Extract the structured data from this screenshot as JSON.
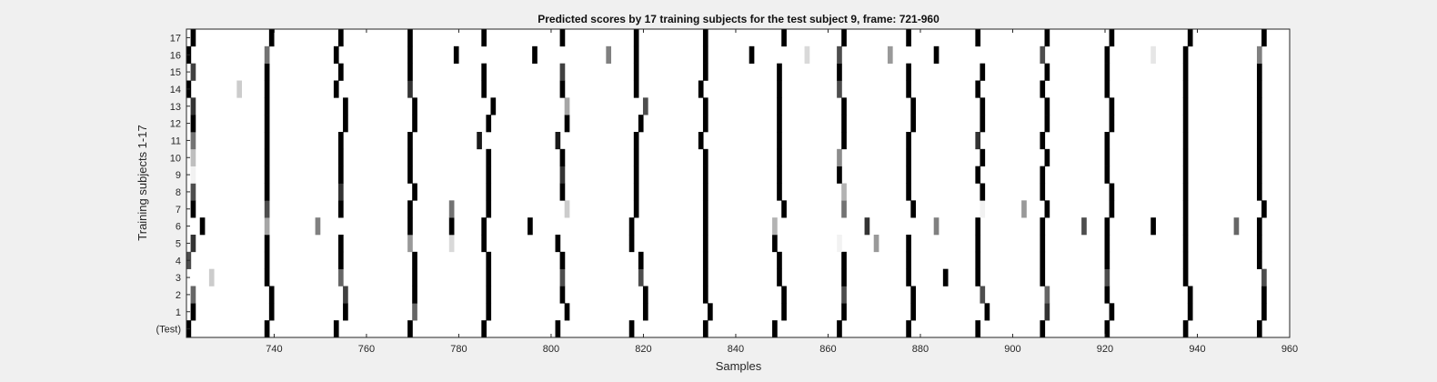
{
  "chart_data": {
    "type": "heatmap",
    "title": "Predicted scores by 17 training subjects for the test subject 9, frame: 721-960",
    "xlabel": "Samples",
    "ylabel": "Training subjects 1-17",
    "xlim": [
      721,
      960
    ],
    "xticks": [
      740,
      760,
      780,
      800,
      820,
      840,
      860,
      880,
      900,
      920,
      940,
      960
    ],
    "ylabels": [
      "(Test)",
      "1",
      "2",
      "3",
      "4",
      "5",
      "6",
      "7",
      "8",
      "9",
      "10",
      "11",
      "12",
      "13",
      "14",
      "15",
      "16",
      "17"
    ],
    "colormap": "grayscale (white = 0, black = 1)",
    "rows": [
      {
        "row": "(Test)",
        "cells": [
          [
            721,
            1
          ],
          [
            738,
            1
          ],
          [
            753,
            1
          ],
          [
            769,
            1
          ],
          [
            785,
            1
          ],
          [
            801,
            1
          ],
          [
            817,
            1
          ],
          [
            833,
            1
          ],
          [
            848,
            1
          ],
          [
            862,
            1
          ],
          [
            877,
            1
          ],
          [
            892,
            1
          ],
          [
            906,
            1
          ],
          [
            920,
            1
          ],
          [
            937,
            1
          ],
          [
            953,
            1
          ]
        ]
      },
      {
        "row": "1",
        "cells": [
          [
            722,
            1
          ],
          [
            739,
            1
          ],
          [
            755,
            1
          ],
          [
            770,
            0.6
          ],
          [
            786,
            1
          ],
          [
            803,
            1
          ],
          [
            820,
            1
          ],
          [
            834,
            1
          ],
          [
            850,
            1
          ],
          [
            863,
            1
          ],
          [
            878,
            1
          ],
          [
            894,
            1
          ],
          [
            907,
            0.8
          ],
          [
            921,
            1
          ],
          [
            938,
            1
          ],
          [
            954,
            1
          ]
        ]
      },
      {
        "row": "2",
        "cells": [
          [
            722,
            0.6
          ],
          [
            739,
            1
          ],
          [
            755,
            0.75
          ],
          [
            770,
            1
          ],
          [
            786,
            1
          ],
          [
            802,
            1
          ],
          [
            820,
            1
          ],
          [
            833,
            1
          ],
          [
            850,
            1
          ],
          [
            863,
            0.7
          ],
          [
            878,
            1
          ],
          [
            893,
            0.7
          ],
          [
            907,
            0.6
          ],
          [
            920,
            1
          ],
          [
            938,
            1
          ],
          [
            954,
            1
          ]
        ]
      },
      {
        "row": "3",
        "cells": [
          [
            726,
            0.2
          ],
          [
            738,
            1
          ],
          [
            754,
            0.6
          ],
          [
            770,
            1
          ],
          [
            786,
            1
          ],
          [
            802,
            0.7
          ],
          [
            819,
            0.7
          ],
          [
            833,
            1
          ],
          [
            849,
            1
          ],
          [
            863,
            1
          ],
          [
            877,
            1
          ],
          [
            885,
            1
          ],
          [
            892,
            1
          ],
          [
            906,
            1
          ],
          [
            920,
            0.7
          ],
          [
            937,
            1
          ],
          [
            954,
            0.7
          ]
        ]
      },
      {
        "row": "4",
        "cells": [
          [
            721,
            0.7
          ],
          [
            738,
            1
          ],
          [
            754,
            1
          ],
          [
            770,
            1
          ],
          [
            786,
            1
          ],
          [
            802,
            1
          ],
          [
            819,
            1
          ],
          [
            833,
            1
          ],
          [
            849,
            1
          ],
          [
            863,
            1
          ],
          [
            877,
            1
          ],
          [
            892,
            1
          ],
          [
            906,
            1
          ],
          [
            920,
            1
          ],
          [
            937,
            1
          ],
          [
            953,
            1
          ]
        ]
      },
      {
        "row": "5",
        "cells": [
          [
            722,
            0.8
          ],
          [
            738,
            1
          ],
          [
            754,
            1
          ],
          [
            769,
            0.4
          ],
          [
            778,
            0.15
          ],
          [
            785,
            1
          ],
          [
            801,
            1
          ],
          [
            817,
            1
          ],
          [
            833,
            1
          ],
          [
            848,
            1
          ],
          [
            862,
            0.05
          ],
          [
            870,
            0.4
          ],
          [
            877,
            1
          ],
          [
            892,
            1
          ],
          [
            906,
            1
          ],
          [
            920,
            1
          ],
          [
            937,
            1
          ],
          [
            953,
            1
          ]
        ]
      },
      {
        "row": "6",
        "cells": [
          [
            724,
            1
          ],
          [
            738,
            0.35
          ],
          [
            749,
            0.5
          ],
          [
            769,
            1
          ],
          [
            778,
            1
          ],
          [
            785,
            1
          ],
          [
            795,
            1
          ],
          [
            817,
            1
          ],
          [
            833,
            1
          ],
          [
            848,
            0.3
          ],
          [
            868,
            0.8
          ],
          [
            883,
            0.5
          ],
          [
            892,
            1
          ],
          [
            906,
            1
          ],
          [
            915,
            0.7
          ],
          [
            920,
            1
          ],
          [
            930,
            1
          ],
          [
            937,
            1
          ],
          [
            948,
            0.6
          ],
          [
            953,
            1
          ]
        ]
      },
      {
        "row": "7",
        "cells": [
          [
            722,
            1
          ],
          [
            738,
            0.7
          ],
          [
            754,
            1
          ],
          [
            769,
            1
          ],
          [
            778,
            0.55
          ],
          [
            786,
            1
          ],
          [
            803,
            0.2
          ],
          [
            818,
            1
          ],
          [
            833,
            1
          ],
          [
            850,
            1
          ],
          [
            863,
            0.55
          ],
          [
            878,
            1
          ],
          [
            893,
            0.05
          ],
          [
            902,
            0.4
          ],
          [
            907,
            1
          ],
          [
            921,
            1
          ],
          [
            937,
            1
          ],
          [
            954,
            1
          ]
        ]
      },
      {
        "row": "8",
        "cells": [
          [
            722,
            0.7
          ],
          [
            738,
            1
          ],
          [
            754,
            0.8
          ],
          [
            770,
            1
          ],
          [
            786,
            1
          ],
          [
            802,
            1
          ],
          [
            818,
            1
          ],
          [
            833,
            1
          ],
          [
            849,
            1
          ],
          [
            863,
            0.3
          ],
          [
            877,
            1
          ],
          [
            893,
            1
          ],
          [
            906,
            1
          ],
          [
            921,
            1
          ],
          [
            937,
            1
          ],
          [
            953,
            1
          ]
        ]
      },
      {
        "row": "9",
        "cells": [
          [
            722,
            0.05
          ],
          [
            738,
            1
          ],
          [
            754,
            1
          ],
          [
            769,
            1
          ],
          [
            786,
            1
          ],
          [
            802,
            0.8
          ],
          [
            818,
            1
          ],
          [
            833,
            1
          ],
          [
            849,
            1
          ],
          [
            862,
            1
          ],
          [
            877,
            1
          ],
          [
            892,
            1
          ],
          [
            906,
            1
          ],
          [
            920,
            1
          ],
          [
            937,
            1
          ],
          [
            953,
            1
          ]
        ]
      },
      {
        "row": "10",
        "cells": [
          [
            722,
            0.25
          ],
          [
            738,
            1
          ],
          [
            754,
            1
          ],
          [
            769,
            1
          ],
          [
            786,
            1
          ],
          [
            802,
            1
          ],
          [
            818,
            1
          ],
          [
            833,
            1
          ],
          [
            849,
            1
          ],
          [
            862,
            0.45
          ],
          [
            877,
            1
          ],
          [
            893,
            1
          ],
          [
            907,
            1
          ],
          [
            920,
            1
          ],
          [
            937,
            1
          ],
          [
            953,
            1
          ]
        ]
      },
      {
        "row": "11",
        "cells": [
          [
            722,
            0.55
          ],
          [
            738,
            1
          ],
          [
            754,
            1
          ],
          [
            769,
            1
          ],
          [
            784,
            0.9
          ],
          [
            801,
            0.9
          ],
          [
            818,
            1
          ],
          [
            832,
            1
          ],
          [
            849,
            1
          ],
          [
            863,
            1
          ],
          [
            877,
            1
          ],
          [
            892,
            0.8
          ],
          [
            906,
            1
          ],
          [
            920,
            1
          ],
          [
            937,
            1
          ],
          [
            953,
            1
          ]
        ]
      },
      {
        "row": "12",
        "cells": [
          [
            722,
            1
          ],
          [
            738,
            1
          ],
          [
            755,
            1
          ],
          [
            770,
            1
          ],
          [
            786,
            1
          ],
          [
            803,
            1
          ],
          [
            819,
            1
          ],
          [
            833,
            1
          ],
          [
            849,
            1
          ],
          [
            863,
            1
          ],
          [
            878,
            1
          ],
          [
            893,
            1
          ],
          [
            907,
            1
          ],
          [
            921,
            1
          ],
          [
            937,
            1
          ],
          [
            953,
            1
          ]
        ]
      },
      {
        "row": "13",
        "cells": [
          [
            722,
            0.8
          ],
          [
            738,
            1
          ],
          [
            755,
            1
          ],
          [
            770,
            1
          ],
          [
            787,
            1
          ],
          [
            803,
            0.35
          ],
          [
            820,
            0.7
          ],
          [
            833,
            1
          ],
          [
            849,
            1
          ],
          [
            863,
            1
          ],
          [
            878,
            1
          ],
          [
            893,
            1
          ],
          [
            907,
            1
          ],
          [
            921,
            1
          ],
          [
            937,
            1
          ],
          [
            953,
            1
          ]
        ]
      },
      {
        "row": "14",
        "cells": [
          [
            721,
            1
          ],
          [
            732,
            0.2
          ],
          [
            738,
            1
          ],
          [
            753,
            1
          ],
          [
            769,
            0.8
          ],
          [
            785,
            1
          ],
          [
            802,
            1
          ],
          [
            818,
            1
          ],
          [
            832,
            1
          ],
          [
            849,
            1
          ],
          [
            862,
            0.7
          ],
          [
            877,
            1
          ],
          [
            892,
            1
          ],
          [
            906,
            1
          ],
          [
            920,
            1
          ],
          [
            937,
            1
          ],
          [
            953,
            1
          ]
        ]
      },
      {
        "row": "15",
        "cells": [
          [
            722,
            0.75
          ],
          [
            738,
            1
          ],
          [
            754,
            1
          ],
          [
            769,
            1
          ],
          [
            785,
            1
          ],
          [
            802,
            0.75
          ],
          [
            818,
            1
          ],
          [
            833,
            1
          ],
          [
            849,
            1
          ],
          [
            862,
            1
          ],
          [
            877,
            1
          ],
          [
            893,
            1
          ],
          [
            907,
            1
          ],
          [
            920,
            1
          ],
          [
            937,
            1
          ],
          [
            953,
            1
          ]
        ]
      },
      {
        "row": "16",
        "cells": [
          [
            721,
            1
          ],
          [
            738,
            0.55
          ],
          [
            753,
            1
          ],
          [
            769,
            1
          ],
          [
            779,
            1
          ],
          [
            796,
            1
          ],
          [
            812,
            0.5
          ],
          [
            818,
            1
          ],
          [
            833,
            1
          ],
          [
            843,
            1
          ],
          [
            855,
            0.15
          ],
          [
            862,
            0.7
          ],
          [
            873,
            0.4
          ],
          [
            883,
            1
          ],
          [
            906,
            0.7
          ],
          [
            920,
            1
          ],
          [
            930,
            0.1
          ],
          [
            937,
            1
          ],
          [
            953,
            0.5
          ]
        ]
      },
      {
        "row": "17",
        "cells": [
          [
            722,
            1
          ],
          [
            739,
            1
          ],
          [
            754,
            1
          ],
          [
            769,
            1
          ],
          [
            785,
            1
          ],
          [
            802,
            1
          ],
          [
            818,
            1
          ],
          [
            833,
            1
          ],
          [
            850,
            1
          ],
          [
            863,
            1
          ],
          [
            877,
            1
          ],
          [
            892,
            1
          ],
          [
            907,
            1
          ],
          [
            921,
            1
          ],
          [
            938,
            1
          ],
          [
            954,
            1
          ]
        ]
      }
    ]
  }
}
